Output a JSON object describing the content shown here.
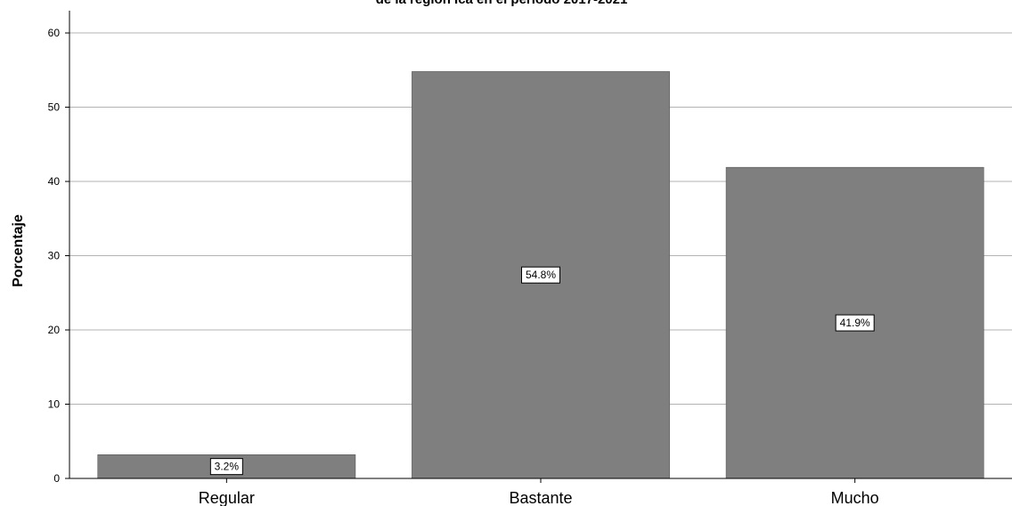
{
  "chart_data": {
    "type": "bar",
    "title": "de la región Ica en el periodo 2017-2021",
    "xlabel": "",
    "ylabel": "Porcentaje",
    "categories": [
      "Regular",
      "Bastante",
      "Mucho"
    ],
    "values": [
      3.2,
      54.8,
      41.9
    ],
    "data_labels": [
      "3.2%",
      "54.8%",
      "41.9%"
    ],
    "ylim": [
      0,
      63
    ],
    "yticks": [
      0,
      10,
      20,
      30,
      40,
      50,
      60
    ],
    "grid": true,
    "bar_color": "#7f7f7f",
    "grid_color": "#b3b3b3"
  }
}
